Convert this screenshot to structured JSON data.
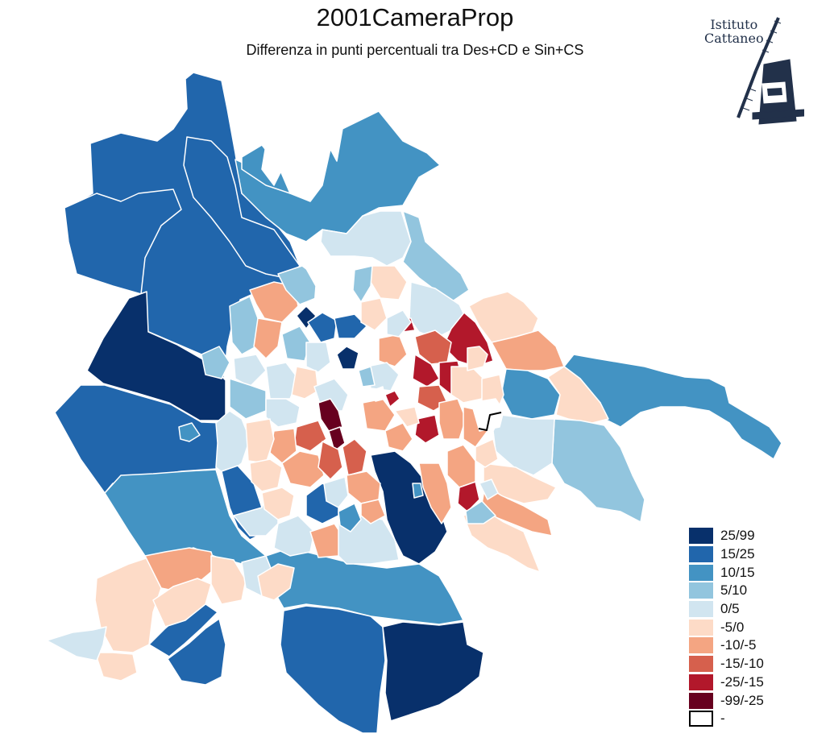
{
  "title": "2001CameraProp",
  "subtitle": "Differenza in punti percentuali tra Des+CD e Sin+CS",
  "logo": {
    "line1": "Istituto",
    "line2": "Cattaneo",
    "icon": "windmill-icon",
    "color": "#22314a"
  },
  "legend": {
    "items": [
      {
        "label": "25/99",
        "color": "#08306b"
      },
      {
        "label": "15/25",
        "color": "#2166ac"
      },
      {
        "label": "10/15",
        "color": "#4393c3"
      },
      {
        "label": "5/10",
        "color": "#92c5de"
      },
      {
        "label": "0/5",
        "color": "#d1e5f0"
      },
      {
        "label": "-5/0",
        "color": "#fddbc7"
      },
      {
        "label": "-10/-5",
        "color": "#f4a582"
      },
      {
        "label": "-15/-10",
        "color": "#d6604d"
      },
      {
        "label": "-25/-15",
        "color": "#b2182b"
      },
      {
        "label": "-99/-25",
        "color": "#67001f"
      },
      {
        "label": "-",
        "color": "#ffffff"
      }
    ]
  }
}
